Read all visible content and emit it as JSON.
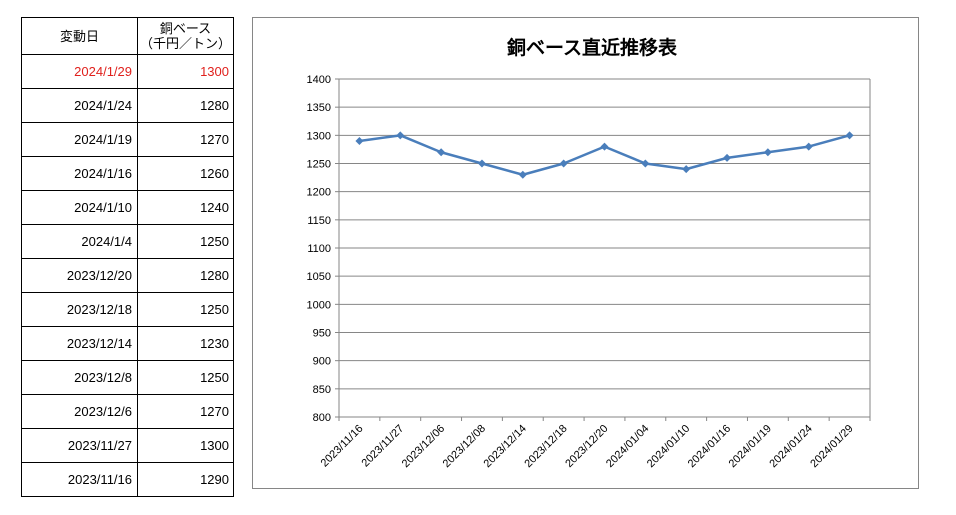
{
  "table": {
    "header_date": "変動日",
    "header_price_line1": "銅ベース",
    "header_price_line2": "（千円／トン）",
    "rows": [
      {
        "date": "2024/1/29",
        "price": "1300"
      },
      {
        "date": "2024/1/24",
        "price": "1280"
      },
      {
        "date": "2024/1/19",
        "price": "1270"
      },
      {
        "date": "2024/1/16",
        "price": "1260"
      },
      {
        "date": "2024/1/10",
        "price": "1240"
      },
      {
        "date": "2024/1/4",
        "price": "1250"
      },
      {
        "date": "2023/12/20",
        "price": "1280"
      },
      {
        "date": "2023/12/18",
        "price": "1250"
      },
      {
        "date": "2023/12/14",
        "price": "1230"
      },
      {
        "date": "2023/12/8",
        "price": "1250"
      },
      {
        "date": "2023/12/6",
        "price": "1270"
      },
      {
        "date": "2023/11/27",
        "price": "1300"
      },
      {
        "date": "2023/11/16",
        "price": "1290"
      }
    ],
    "latest_color": "#e0211d"
  },
  "chart_data": {
    "type": "line",
    "title": "銅ベース直近推移表",
    "xlabel": "",
    "ylabel": "",
    "categories": [
      "2023/11/16",
      "2023/11/27",
      "2023/12/06",
      "2023/12/08",
      "2023/12/14",
      "2023/12/18",
      "2023/12/20",
      "2024/01/04",
      "2024/01/10",
      "2024/01/16",
      "2024/01/19",
      "2024/01/24",
      "2024/01/29"
    ],
    "series": [
      {
        "values": [
          1290,
          1300,
          1270,
          1250,
          1230,
          1250,
          1280,
          1250,
          1240,
          1260,
          1270,
          1280,
          1300
        ],
        "color": "#4a7ebb"
      }
    ],
    "ylim": [
      800,
      1400
    ],
    "ytick_step": 50,
    "grid": true,
    "legend": "none",
    "marker": "diamond"
  }
}
